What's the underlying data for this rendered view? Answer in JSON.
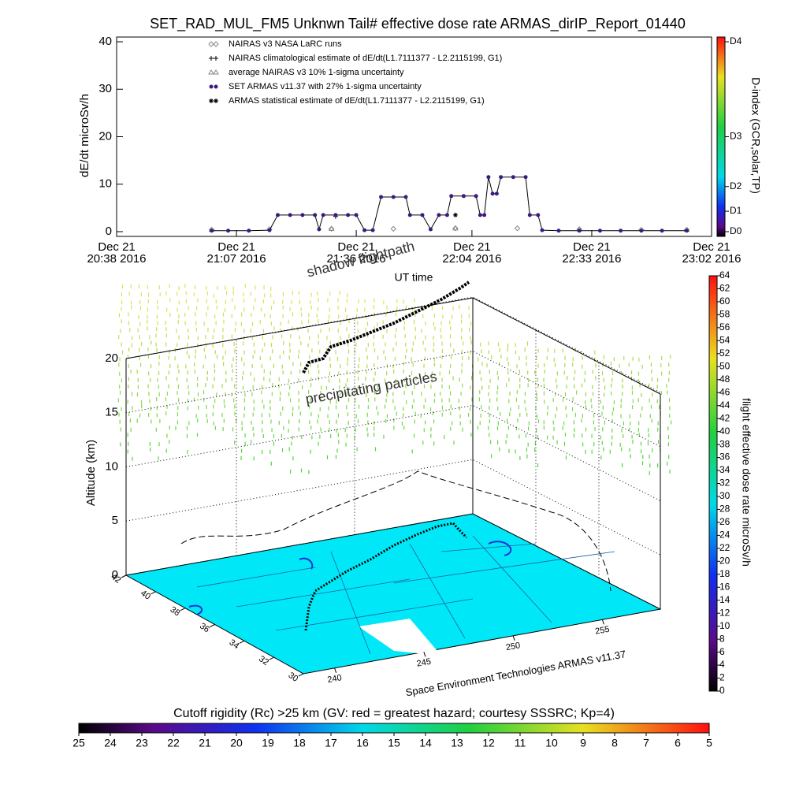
{
  "chart_data": [
    {
      "type": "line",
      "title": "SET_RAD_MUL_FM5 Unknwn Tail#  effective dose rate ARMAS_dirIP_Report_01440",
      "y_label": "dE/dt microSv/h",
      "x_label": "UT time",
      "xlim": [
        "2016-12-21 20:38",
        "2016-12-21 23:02"
      ],
      "xticks": [
        {
          "value": "2016-12-21 20:38",
          "label": [
            "Dec 21",
            "20:38 2016"
          ]
        },
        {
          "value": "2016-12-21 21:07",
          "label": [
            "Dec 21",
            "21:07 2016"
          ]
        },
        {
          "value": "2016-12-21 21:36",
          "label": [
            "Dec 21",
            "21:36 2016"
          ]
        },
        {
          "value": "2016-12-21 22:04",
          "label": [
            "Dec 21",
            "22:04 2016"
          ]
        },
        {
          "value": "2016-12-21 22:33",
          "label": [
            "Dec 21",
            "22:33 2016"
          ]
        },
        {
          "value": "2016-12-21 23:02",
          "label": [
            "Dec 21",
            "23:02 2016"
          ]
        }
      ],
      "ylim": [
        -1,
        41
      ],
      "yticks": [
        0,
        10,
        20,
        30,
        40
      ],
      "y2_label": "D-index (GCR,solar,TP)",
      "y2lim": [
        -1,
        41
      ],
      "y2ticks": [
        {
          "value": 0,
          "label": "D0"
        },
        {
          "value": 4.3,
          "label": "D1"
        },
        {
          "value": 9.5,
          "label": "D2"
        },
        {
          "value": 20,
          "label": "D3"
        },
        {
          "value": 40,
          "label": "D4"
        }
      ],
      "series": [
        {
          "name": "NAIRAS v3 NASA LaRC runs",
          "color": "#888888",
          "marker": "diamond",
          "x": [
            "2016-12-21 21:01",
            "2016-12-21 21:15",
            "2016-12-21 21:30",
            "2016-12-21 21:45",
            "2016-12-21 22:00",
            "2016-12-21 22:15",
            "2016-12-21 22:30",
            "2016-12-21 22:45",
            "2016-12-21 22:56"
          ],
          "values": [
            0.4,
            0.5,
            0.6,
            0.6,
            0.7,
            0.7,
            0.5,
            0.4,
            0.4
          ]
        },
        {
          "name": "NAIRAS climatological estimate of dE/dt(L1.7111377 - L2.2115199, G1)",
          "color": "#000000",
          "marker": "plus",
          "x": [
            "2016-12-21 21:31"
          ],
          "values": [
            3.2
          ]
        },
        {
          "name": "average NAIRAS v3 10% 1-sigma uncertainty",
          "color": "#888888",
          "marker": "triangle",
          "x": [
            "2016-12-21 21:01",
            "2016-12-21 21:30",
            "2016-12-21 22:00",
            "2016-12-21 22:30",
            "2016-12-21 22:56"
          ],
          "values": [
            0.4,
            0.6,
            0.7,
            0.5,
            0.4
          ]
        },
        {
          "name": "SET ARMAS v11.37 with 27% 1-sigma uncertainty",
          "color": "#3a1a80",
          "marker": "circle",
          "x": [
            "2016-12-21 21:01",
            "2016-12-21 21:05",
            "2016-12-21 21:10",
            "2016-12-21 21:15",
            "2016-12-21 21:17",
            "2016-12-21 21:20",
            "2016-12-21 21:23",
            "2016-12-21 21:26",
            "2016-12-21 21:27",
            "2016-12-21 21:28",
            "2016-12-21 21:31",
            "2016-12-21 21:34",
            "2016-12-21 21:36",
            "2016-12-21 21:38",
            "2016-12-21 21:40",
            "2016-12-21 21:42",
            "2016-12-21 21:45",
            "2016-12-21 21:48",
            "2016-12-21 21:49",
            "2016-12-21 21:52",
            "2016-12-21 21:54",
            "2016-12-21 21:56",
            "2016-12-21 21:58",
            "2016-12-21 21:59",
            "2016-12-21 22:02",
            "2016-12-21 22:05",
            "2016-12-21 22:06",
            "2016-12-21 22:07",
            "2016-12-21 22:08",
            "2016-12-21 22:09",
            "2016-12-21 22:10",
            "2016-12-21 22:11",
            "2016-12-21 22:14",
            "2016-12-21 22:17",
            "2016-12-21 22:18",
            "2016-12-21 22:20",
            "2016-12-21 22:21",
            "2016-12-21 22:25",
            "2016-12-21 22:30",
            "2016-12-21 22:35",
            "2016-12-21 22:40",
            "2016-12-21 22:45",
            "2016-12-21 22:50",
            "2016-12-21 22:56"
          ],
          "values": [
            0.2,
            0.2,
            0.2,
            0.3,
            3.5,
            3.5,
            3.5,
            3.5,
            0.5,
            3.5,
            3.5,
            3.5,
            3.5,
            0.3,
            0.3,
            7.3,
            7.3,
            7.3,
            3.5,
            3.5,
            0.5,
            3.5,
            3.5,
            7.5,
            7.5,
            7.5,
            3.5,
            3.5,
            11.5,
            8,
            8,
            11.5,
            11.5,
            11.5,
            3.5,
            3.5,
            0.3,
            0.2,
            0.2,
            0.2,
            0.2,
            0.2,
            0.2,
            0.2
          ]
        },
        {
          "name": "ARMAS statistical estimate of dE/dt(L1.7111377 - L2.2115199, G1)",
          "color": "#000000",
          "marker": "asterisk",
          "x": [
            "2016-12-21 22:00"
          ],
          "values": [
            3.5
          ]
        }
      ]
    },
    {
      "type": "surface3d",
      "y_label": "Altitude (km)",
      "ylim": [
        0,
        20
      ],
      "yticks": [
        0,
        5,
        10,
        15,
        20
      ],
      "lat_ticks": [
        42,
        40,
        38,
        36,
        34,
        32,
        30
      ],
      "lon_ticks": [
        240,
        245,
        250,
        255
      ],
      "annotations": [
        "shadow flightpath",
        "precipitating particles"
      ],
      "subtitle": "Space Environment Technologies ARMAS v11.37"
    },
    {
      "type": "colorbar",
      "label": "flight effective dose rate microSv/h",
      "ylim": [
        0,
        64
      ],
      "yticks": [
        0,
        2,
        4,
        6,
        8,
        10,
        12,
        14,
        16,
        18,
        20,
        22,
        24,
        26,
        28,
        30,
        32,
        34,
        36,
        38,
        40,
        42,
        44,
        46,
        48,
        50,
        52,
        54,
        56,
        58,
        60,
        62,
        64
      ]
    },
    {
      "type": "colorbar",
      "title": "Cutoff rigidity (Rc) >25 km (GV: red = greatest hazard; courtesy SSSRC; Kp=4)",
      "xlim": [
        25,
        5
      ],
      "xticks": [
        25,
        24,
        23,
        22,
        21,
        20,
        19,
        18,
        17,
        16,
        15,
        14,
        13,
        12,
        11,
        10,
        9,
        8,
        7,
        6,
        5
      ]
    }
  ]
}
